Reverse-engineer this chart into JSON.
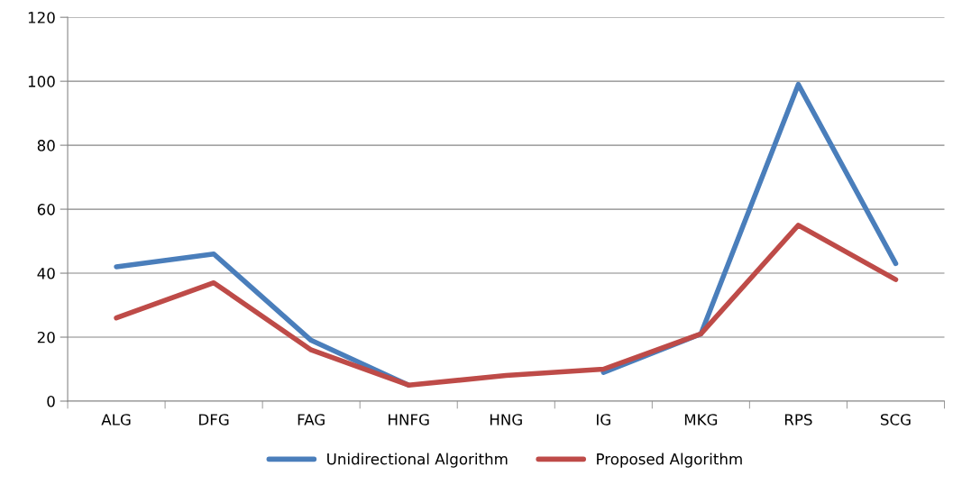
{
  "chart_data": {
    "type": "line",
    "categories": [
      "ALG",
      "DFG",
      "FAG",
      "HNFG",
      "HNG",
      "IG",
      "MKG",
      "RPS",
      "SCG"
    ],
    "series": [
      {
        "name": "Unidirectional Algorithm",
        "color": "#4a7ebb",
        "values": [
          42,
          46,
          19,
          5,
          null,
          9,
          21,
          99,
          43
        ]
      },
      {
        "name": "Proposed Algorithm",
        "color": "#be4b48",
        "values": [
          26,
          37,
          16,
          5,
          8,
          10,
          21,
          55,
          38
        ]
      }
    ],
    "ylim": [
      0,
      120
    ],
    "yticks": [
      0,
      20,
      40,
      60,
      80,
      100,
      120
    ],
    "grid": "y",
    "legend": "bottom",
    "marker": "none",
    "line_style": "solid"
  }
}
